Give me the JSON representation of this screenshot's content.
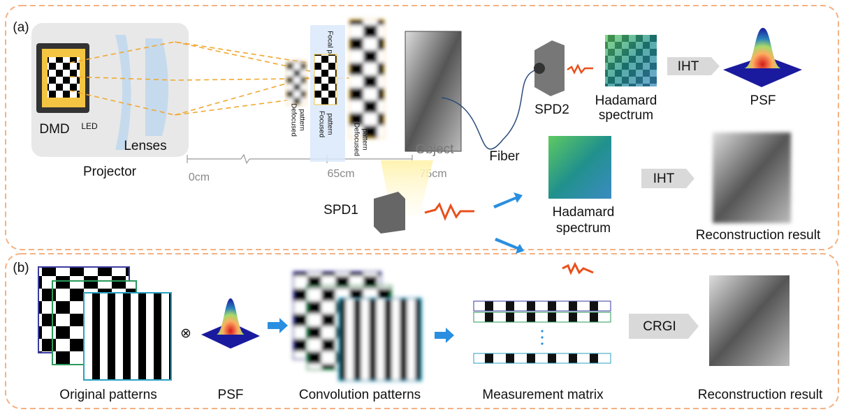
{
  "panel_a": {
    "label": "(a)",
    "projector": {
      "dmd": "DMD",
      "led": "LED",
      "lenses": "Lenses",
      "title": "Projector"
    },
    "patterns": {
      "defocused_near": [
        "Defocused",
        "pattern"
      ],
      "focal_plane": "Focal plane",
      "focused": [
        "Focused",
        "pattern"
      ],
      "defocused_far": [
        "Defocused",
        "pattern"
      ]
    },
    "object": "Object",
    "distances": [
      "0cm",
      "65cm",
      "75cm"
    ],
    "spd2": "SPD2",
    "spd1": "SPD1",
    "fiber": "Fiber",
    "upper": {
      "spectrum": [
        "Hadamard",
        "spectrum"
      ],
      "method": "IHT",
      "result": "PSF"
    },
    "lower": {
      "spectrum": [
        "Hadamard",
        "spectrum"
      ],
      "method": "IHT",
      "result": "Reconstruction result"
    }
  },
  "panel_b": {
    "label": "(b)",
    "operator": "⊗",
    "steps": [
      "Original patterns",
      "PSF",
      "Convolution patterns",
      "Measurement matrix"
    ],
    "method": "CRGI",
    "result": "Reconstruction result"
  }
}
